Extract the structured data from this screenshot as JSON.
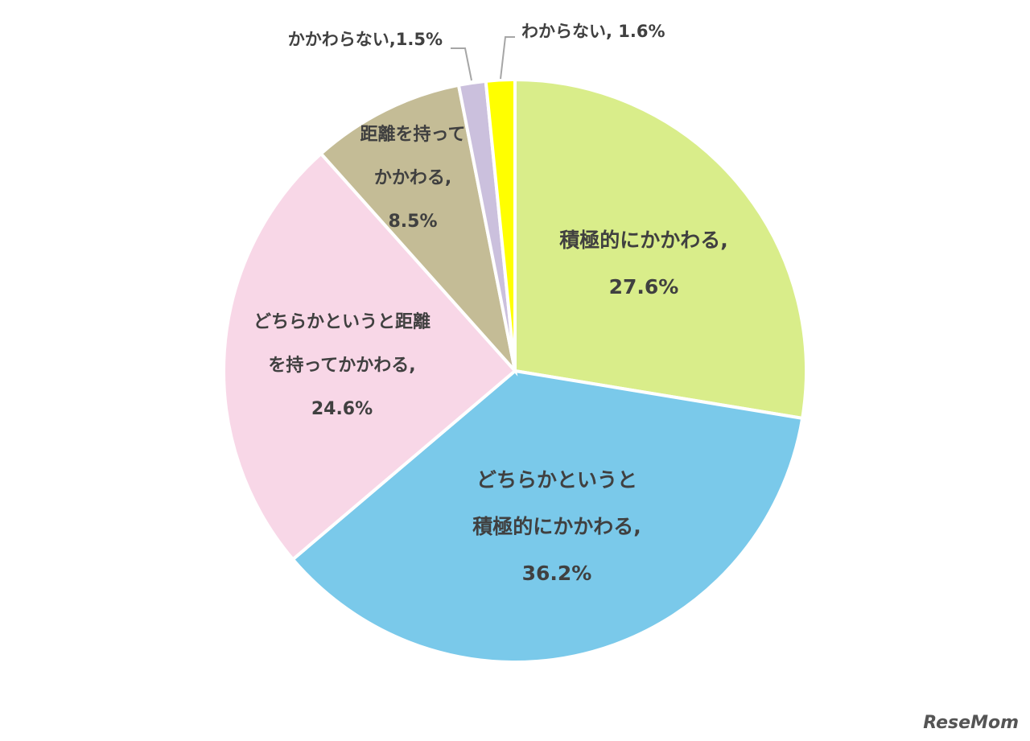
{
  "chart_data": {
    "type": "pie",
    "categories": [
      "積極的にかかわる,",
      "どちらかというと\n積極的にかかわる,",
      "どちらかというと距離\nを持ってかかわる,",
      "距離を持って\nかかわる,",
      "かかわらない,",
      "わからない, "
    ],
    "values": [
      27.6,
      36.2,
      24.6,
      8.5,
      1.5,
      1.6
    ],
    "value_labels": [
      "27.6%",
      "36.2%",
      "24.6%",
      "8.5%",
      "1.5%",
      "1.6%"
    ],
    "colors": [
      "#d9ed8a",
      "#7ac9ea",
      "#f8d7e7",
      "#c4bc96",
      "#cbc0dd",
      "#ffff00"
    ],
    "watermark": "ReseMom"
  }
}
